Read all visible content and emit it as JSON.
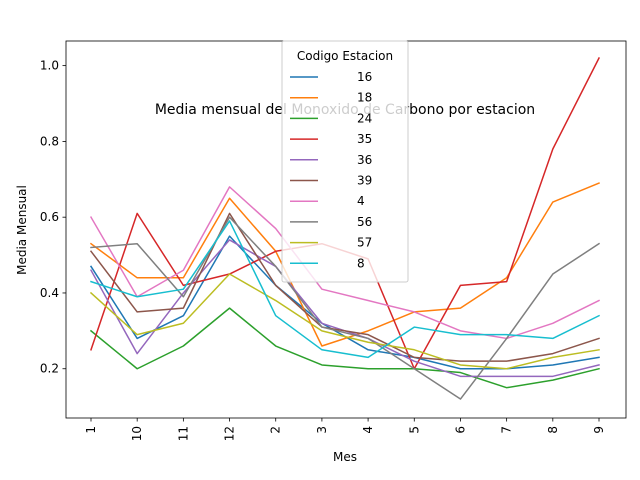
{
  "chart_data": {
    "type": "line",
    "title": "Media mensual del Monoxido de Carbono por estacion",
    "xlabel": "Mes",
    "ylabel": "Media Mensual",
    "categories": [
      "1",
      "10",
      "11",
      "12",
      "2",
      "3",
      "4",
      "5",
      "6",
      "7",
      "8",
      "9"
    ],
    "y_ticks": [
      "0.2",
      "0.4",
      "0.6",
      "0.8",
      "1.0"
    ],
    "ylim": [
      0.07,
      1.065
    ],
    "grid": false,
    "legend": {
      "title": "Codigo Estacion",
      "placement": "top-center"
    },
    "series": [
      {
        "name": "16",
        "color": "#1f77b4",
        "values": [
          0.47,
          0.28,
          0.34,
          0.55,
          0.42,
          0.32,
          0.25,
          0.23,
          0.2,
          0.2,
          0.21,
          0.23
        ]
      },
      {
        "name": "18",
        "color": "#ff7f0e",
        "values": [
          0.53,
          0.44,
          0.44,
          0.65,
          0.51,
          0.26,
          0.3,
          0.35,
          0.36,
          0.44,
          0.64,
          0.69
        ]
      },
      {
        "name": "24",
        "color": "#2ca02c",
        "values": [
          0.3,
          0.2,
          0.26,
          0.36,
          0.26,
          0.21,
          0.2,
          0.2,
          0.19,
          0.15,
          0.17,
          0.2
        ]
      },
      {
        "name": "35",
        "color": "#d62728",
        "values": [
          0.25,
          0.61,
          0.42,
          0.45,
          0.51,
          0.53,
          0.49,
          0.2,
          0.42,
          0.43,
          0.78,
          1.02
        ]
      },
      {
        "name": "36",
        "color": "#9467bd",
        "values": [
          0.46,
          0.24,
          0.4,
          0.54,
          0.47,
          0.32,
          0.28,
          0.22,
          0.18,
          0.18,
          0.18,
          0.21
        ]
      },
      {
        "name": "39",
        "color": "#8c564b",
        "values": [
          0.51,
          0.35,
          0.36,
          0.61,
          0.42,
          0.31,
          0.29,
          0.23,
          0.22,
          0.22,
          0.24,
          0.28
        ]
      },
      {
        "name": "4",
        "color": "#e377c2",
        "values": [
          0.6,
          0.39,
          0.46,
          0.68,
          0.57,
          0.41,
          0.38,
          0.35,
          0.3,
          0.28,
          0.32,
          0.38
        ]
      },
      {
        "name": "56",
        "color": "#7f7f7f",
        "values": [
          0.52,
          0.53,
          0.39,
          0.6,
          0.47,
          0.31,
          0.28,
          0.2,
          0.12,
          0.28,
          0.45,
          0.53
        ]
      },
      {
        "name": "57",
        "color": "#bcbd22",
        "values": [
          0.4,
          0.29,
          0.32,
          0.45,
          0.38,
          0.3,
          0.27,
          0.25,
          0.21,
          0.2,
          0.23,
          0.25
        ]
      },
      {
        "name": "8",
        "color": "#17becf",
        "values": [
          0.43,
          0.39,
          0.41,
          0.59,
          0.34,
          0.25,
          0.23,
          0.31,
          0.29,
          0.29,
          0.28,
          0.34
        ]
      }
    ]
  }
}
